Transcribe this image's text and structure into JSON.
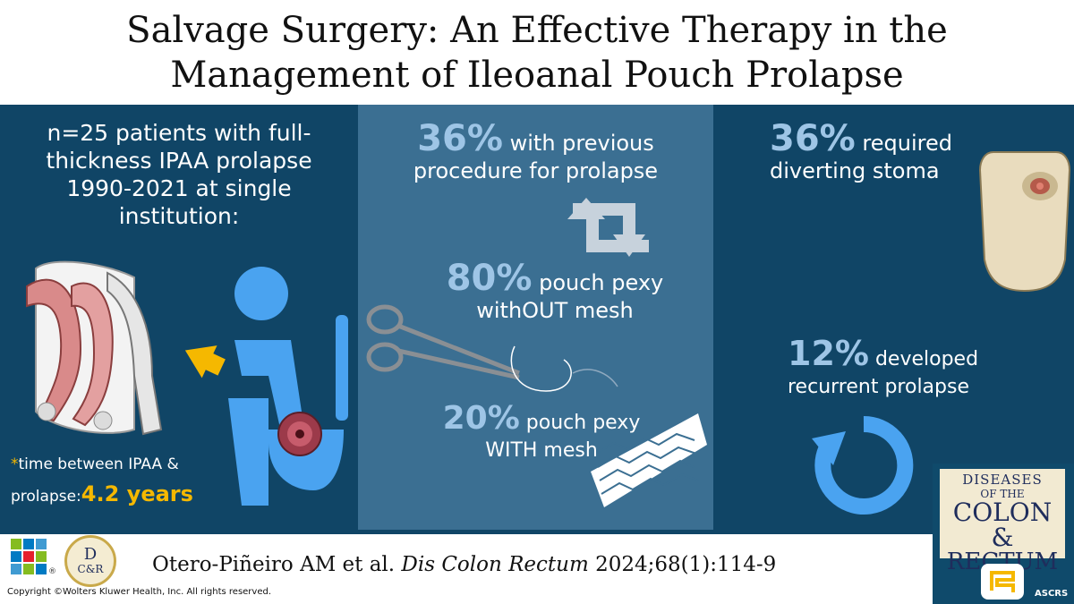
{
  "title": {
    "line1": "Salvage Surgery: An Effective Therapy in the",
    "line2": "Management of Ileoanal Pouch Prolapse"
  },
  "left": {
    "cohort_line1": "n=25 patients with full-",
    "cohort_line2": "thickness IPAA prolapse",
    "cohort_line3": "1990-2021 at single",
    "cohort_line4": "institution:",
    "time_star": "*",
    "time_line1": "time between IPAA &",
    "time_line2": "prolapse:",
    "time_value": "4.2 years"
  },
  "middle": {
    "stat1_value": "36%",
    "stat1_text_a": "with previous",
    "stat1_text_b": "procedure for prolapse",
    "stat2_value": "80%",
    "stat2_text_a": "pouch pexy",
    "stat2_text_b": "withOUT mesh",
    "stat3_value": "20%",
    "stat3_text_a": "pouch pexy",
    "stat3_text_b": "WITH mesh"
  },
  "right": {
    "stat1_value": "36%",
    "stat1_text_a": "required",
    "stat1_text_b": "diverting stoma",
    "stat2_value": "12%",
    "stat2_text_a": "developed",
    "stat2_text_b": "recurrent prolapse"
  },
  "citation": {
    "authors": "Otero-Piñeiro AM et al.",
    "journal": "Dis Colon Rectum",
    "ref": "2024;68(1):114-9"
  },
  "copyright": "Copyright ©Wolters Kluwer Health, Inc. All rights reserved.",
  "journal_badge": {
    "line1": "DISEASES",
    "line2": "OF THE",
    "line3": "COLON &",
    "line4": "RECTUM",
    "society": "ASCRS"
  },
  "logos": {
    "wk_mark": "®",
    "dcr_monogram_top": "D",
    "dcr_monogram_bottom": "C&R"
  },
  "colors": {
    "band": "#104566",
    "middle_panel": "#3b6f92",
    "highlight": "#9ec5e6",
    "accent": "#f5b800",
    "icon_blue": "#4aa3f0"
  }
}
